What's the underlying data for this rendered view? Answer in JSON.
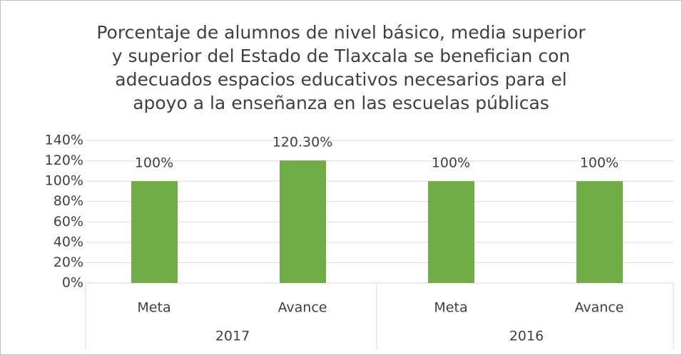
{
  "chart_data": {
    "type": "bar",
    "title": [
      "Porcentaje de alumnos de nivel básico, media superior",
      "y superior del Estado de Tlaxcala se benefician con",
      "adecuados espacios educativos necesarios para el",
      "apoyo a la enseñanza en las escuelas públicas"
    ],
    "categories": [
      "Meta",
      "Avance",
      "Meta",
      "Avance"
    ],
    "groups": [
      "2017",
      "2016"
    ],
    "values": [
      100,
      120.3,
      100,
      100
    ],
    "value_labels": [
      "100%",
      "120.30%",
      "100%",
      "100%"
    ],
    "color": "#70ad47",
    "ylim": [
      0,
      140
    ],
    "yticks": [
      {
        "value": 0,
        "label": "0%"
      },
      {
        "value": 20,
        "label": "20%"
      },
      {
        "value": 40,
        "label": "40%"
      },
      {
        "value": 60,
        "label": "60%"
      },
      {
        "value": 80,
        "label": "80%"
      },
      {
        "value": 100,
        "label": "100%"
      },
      {
        "value": 120,
        "label": "120%"
      },
      {
        "value": 140,
        "label": "140%"
      }
    ],
    "grid": true
  }
}
